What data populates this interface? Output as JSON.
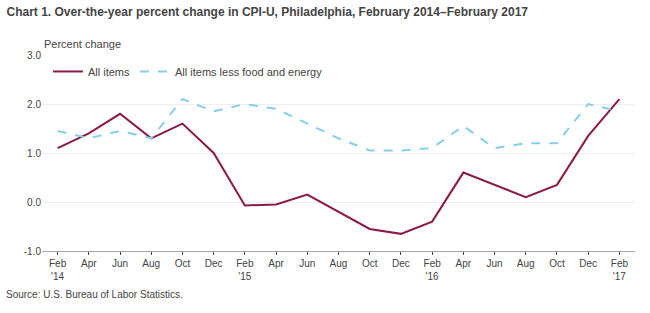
{
  "chart_data": {
    "type": "line",
    "title": "Chart 1. Over-the-year percent change in CPI-U, Philadelphia, February 2014–February 2017",
    "y_label": "Percent change",
    "source": "Source: U.S. Bureau of Labor Statistics.",
    "categories": [
      "Feb\n'14",
      "Apr",
      "Jun",
      "Aug",
      "Oct",
      "Dec",
      "Feb\n'15",
      "Apr",
      "Jun",
      "Aug",
      "Oct",
      "Dec",
      "Feb\n'16",
      "Apr",
      "Jun",
      "Aug",
      "Oct",
      "Dec",
      "Feb\n'17"
    ],
    "series": [
      {
        "name": "All items",
        "color": "#8B1A4A",
        "line_style": "solid",
        "values": [
          1.1,
          1.4,
          1.8,
          1.3,
          1.6,
          1.0,
          -0.07,
          -0.05,
          0.15,
          -0.2,
          -0.55,
          -0.65,
          -0.4,
          0.6,
          0.35,
          0.1,
          0.35,
          1.35,
          2.1
        ]
      },
      {
        "name": "All items less food and energy",
        "color": "#87CEEB",
        "line_style": "dashed",
        "values": [
          1.45,
          1.3,
          1.45,
          1.3,
          2.1,
          1.85,
          2.0,
          1.9,
          1.6,
          1.3,
          1.05,
          1.05,
          1.1,
          1.55,
          1.1,
          1.2,
          1.2,
          2.0,
          1.85
        ]
      }
    ],
    "ylim": [
      -1.0,
      3.0
    ],
    "yticks": [
      {
        "value": -1.0,
        "label": "-1.0"
      },
      {
        "value": 0.0,
        "label": "0.0"
      },
      {
        "value": 1.0,
        "label": "1.0"
      },
      {
        "value": 2.0,
        "label": "2.0"
      },
      {
        "value": 3.0,
        "label": "3.0"
      }
    ],
    "grid": "y",
    "legend": "upper left"
  }
}
